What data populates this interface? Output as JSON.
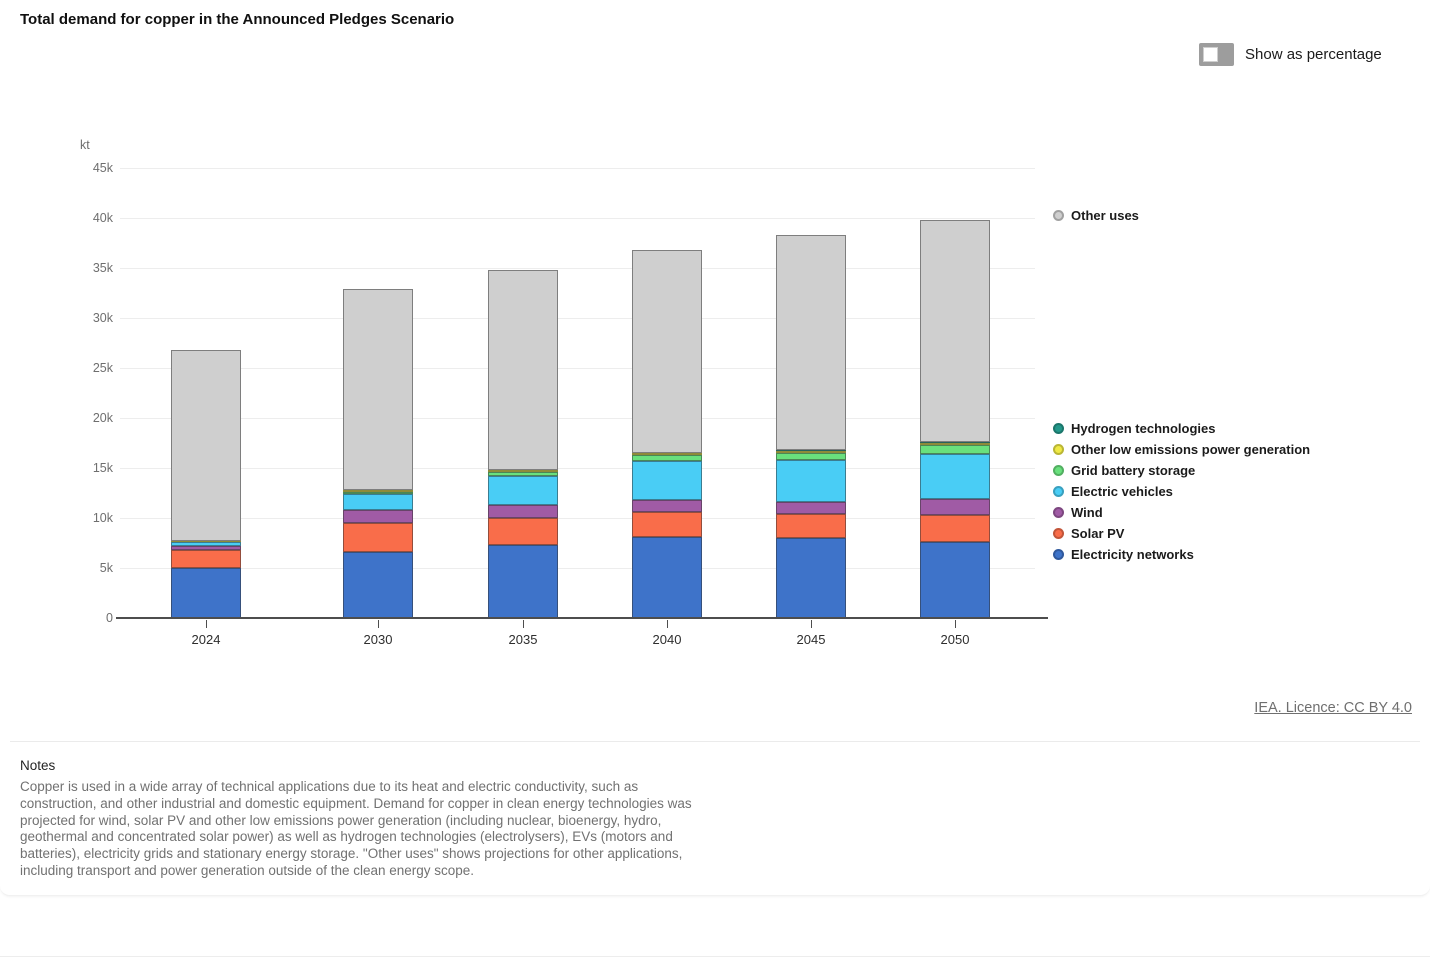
{
  "header": {
    "title": "Total demand for copper in the Announced Pledges Scenario"
  },
  "controls": {
    "show_as_percentage_label": "Show as percentage",
    "toggle_state": "off"
  },
  "chart_data": {
    "type": "bar",
    "stacked": true,
    "title": "Total demand for copper in the Announced Pledges Scenario",
    "unit_label": "kt",
    "xlabel": "",
    "ylabel": "kt",
    "ylim": [
      0,
      45000
    ],
    "ytick_step": 5000,
    "ytick_labels": [
      "0",
      "5k",
      "10k",
      "15k",
      "20k",
      "25k",
      "30k",
      "35k",
      "40k",
      "45k"
    ],
    "grid": true,
    "legend_position": "right",
    "categories": [
      "2024",
      "2030",
      "2035",
      "2040",
      "2045",
      "2050"
    ],
    "series": [
      {
        "name": "Electricity networks",
        "color": "#3e73c9",
        "values": [
          5000,
          6600,
          7300,
          8100,
          8000,
          7600
        ]
      },
      {
        "name": "Solar PV",
        "color": "#f96d4a",
        "values": [
          1800,
          2900,
          2700,
          2500,
          2400,
          2700
        ]
      },
      {
        "name": "Wind",
        "color": "#a05ba5",
        "values": [
          400,
          1300,
          1300,
          1200,
          1200,
          1600
        ]
      },
      {
        "name": "Electric vehicles",
        "color": "#49cdf5",
        "values": [
          400,
          1600,
          2900,
          3900,
          4200,
          4500
        ]
      },
      {
        "name": "Grid battery storage",
        "color": "#69e07d",
        "values": [
          50,
          200,
          400,
          600,
          700,
          900
        ]
      },
      {
        "name": "Other low emissions power generation",
        "color": "#efe945",
        "values": [
          100,
          200,
          200,
          200,
          250,
          200
        ]
      },
      {
        "name": "Hydrogen technologies",
        "color": "#23988a",
        "values": [
          0,
          50,
          50,
          50,
          50,
          100
        ]
      },
      {
        "name": "Other uses",
        "color": "#cfcfcf",
        "values": [
          19050,
          20050,
          19950,
          20250,
          21500,
          22200
        ]
      }
    ],
    "totals": [
      26800,
      32900,
      34800,
      36800,
      38300,
      39800
    ]
  },
  "licence": {
    "label": "IEA. Licence: CC BY 4.0"
  },
  "notes": {
    "heading": "Notes",
    "body": "Copper is used in a wide array of technical applications due to its heat and electric conductivity, such as construction, and other industrial and domestic equipment. Demand for copper in clean energy technologies was projected for wind, solar PV and other low emissions power generation (including nuclear, bioenergy, hydro, geothermal and concentrated solar power) as well as hydrogen technologies (electrolysers), EVs (motors and batteries), electricity grids and stationary energy storage. \"Other uses\" shows projections for other applications, including transport and power generation outside of the clean energy scope."
  }
}
